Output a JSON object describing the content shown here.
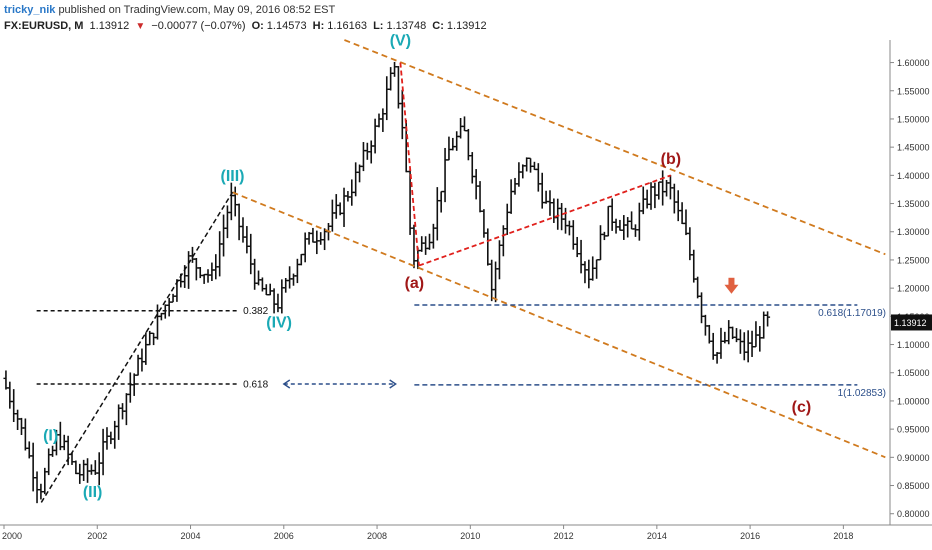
{
  "header": {
    "author": "tricky_nik",
    "published": "published on TradingView.com, May 09, 2016 08:52 EST",
    "symbol": "FX:EURUSD, M",
    "last": "1.13912",
    "change": "−0.00077 (−0.07%)",
    "open_label": "O:",
    "open": "1.14573",
    "high_label": "H:",
    "high": "1.16163",
    "low_label": "L:",
    "low": "1.13748",
    "close_label": "C:",
    "close": "1.13912"
  },
  "colors": {
    "price_bars": "#111111",
    "wave_labels_primary": "#1aa9b5",
    "wave_labels_secondary": "#a01717",
    "channel": "#d07a1e",
    "fib_lines": "#2c4f8a",
    "red_dashed": "#e0201c",
    "marker": "#e06040"
  },
  "chart_data": {
    "type": "ohlc",
    "instrument": "FX:EURUSD",
    "timeframe": "Monthly",
    "x_ticks": [
      "2000",
      "2002",
      "2004",
      "2006",
      "2008",
      "2010",
      "2012",
      "2014",
      "2016",
      "2018"
    ],
    "y_ticks": [
      "0.80000",
      "0.85000",
      "0.90000",
      "0.95000",
      "1.00000",
      "1.05000",
      "1.10000",
      "1.15000",
      "1.20000",
      "1.25000",
      "1.30000",
      "1.35000",
      "1.40000",
      "1.45000",
      "1.50000",
      "1.55000",
      "1.60000"
    ],
    "ylim": [
      0.78,
      1.64
    ],
    "xlim": [
      2000.0,
      2019.0
    ],
    "last_price_label": "1.13912",
    "price_path": [
      [
        2000.0,
        1.04
      ],
      [
        2000.3,
        0.98
      ],
      [
        2000.8,
        0.84
      ],
      [
        2001.2,
        0.94
      ],
      [
        2001.6,
        0.87
      ],
      [
        2002.0,
        0.88
      ],
      [
        2002.5,
        0.98
      ],
      [
        2003.0,
        1.08
      ],
      [
        2003.5,
        1.17
      ],
      [
        2004.0,
        1.25
      ],
      [
        2004.5,
        1.22
      ],
      [
        2004.9,
        1.36
      ],
      [
        2005.5,
        1.2
      ],
      [
        2005.9,
        1.17
      ],
      [
        2006.5,
        1.28
      ],
      [
        2007.0,
        1.31
      ],
      [
        2007.5,
        1.38
      ],
      [
        2008.1,
        1.5
      ],
      [
        2008.4,
        1.59
      ],
      [
        2008.6,
        1.48
      ],
      [
        2008.8,
        1.25
      ],
      [
        2009.2,
        1.3
      ],
      [
        2009.6,
        1.45
      ],
      [
        2009.9,
        1.48
      ],
      [
        2010.3,
        1.33
      ],
      [
        2010.5,
        1.2
      ],
      [
        2010.9,
        1.37
      ],
      [
        2011.3,
        1.43
      ],
      [
        2011.7,
        1.34
      ],
      [
        2012.1,
        1.32
      ],
      [
        2012.6,
        1.22
      ],
      [
        2013.0,
        1.33
      ],
      [
        2013.5,
        1.3
      ],
      [
        2013.9,
        1.37
      ],
      [
        2014.3,
        1.38
      ],
      [
        2014.7,
        1.28
      ],
      [
        2015.0,
        1.16
      ],
      [
        2015.3,
        1.08
      ],
      [
        2015.6,
        1.12
      ],
      [
        2015.9,
        1.09
      ],
      [
        2016.1,
        1.1
      ],
      [
        2016.35,
        1.14
      ]
    ],
    "wave_labels": [
      {
        "text": "(I)",
        "x": 2001.0,
        "y": 0.93,
        "color": "primary"
      },
      {
        "text": "(II)",
        "x": 2001.9,
        "y": 0.83,
        "color": "primary"
      },
      {
        "text": "(III)",
        "x": 2004.9,
        "y": 1.39,
        "color": "primary"
      },
      {
        "text": "(IV)",
        "x": 2005.9,
        "y": 1.13,
        "color": "primary"
      },
      {
        "text": "(V)",
        "x": 2008.5,
        "y": 1.63,
        "color": "primary"
      },
      {
        "text": "(a)",
        "x": 2008.8,
        "y": 1.2,
        "color": "secondary"
      },
      {
        "text": "(b)",
        "x": 2014.3,
        "y": 1.42,
        "color": "secondary"
      },
      {
        "text": "(c)",
        "x": 2017.1,
        "y": 0.98,
        "color": "secondary"
      }
    ],
    "fib_levels": [
      {
        "label": "0.382",
        "y": 1.16,
        "x_from": 2000.7,
        "x_to": 2005.0
      },
      {
        "label": "0.618",
        "y": 1.03,
        "x_from": 2000.7,
        "x_to": 2005.0
      }
    ],
    "projection_levels": [
      {
        "label": "0.618(1.17019)",
        "y": 1.17019,
        "x_from": 2008.8,
        "x_to": 2018.3
      },
      {
        "label": "1(1.02853)",
        "y": 1.02853,
        "x_from": 2008.8,
        "x_to": 2018.3
      }
    ],
    "wave_trendline": {
      "from": [
        2000.8,
        0.82
      ],
      "to": [
        2004.9,
        1.37
      ]
    },
    "red_lines": [
      {
        "from": [
          2008.5,
          1.6
        ],
        "to": [
          2008.9,
          1.24
        ]
      },
      {
        "from": [
          2008.9,
          1.24
        ],
        "to": [
          2014.3,
          1.4
        ]
      }
    ],
    "channel_lines": [
      {
        "from": [
          2007.3,
          1.64
        ],
        "to": [
          2018.9,
          1.26
        ]
      },
      {
        "from": [
          2004.9,
          1.37
        ],
        "to": [
          2018.9,
          0.9
        ]
      }
    ],
    "arrow_marker": {
      "x": 2015.6,
      "y": 1.19
    }
  }
}
